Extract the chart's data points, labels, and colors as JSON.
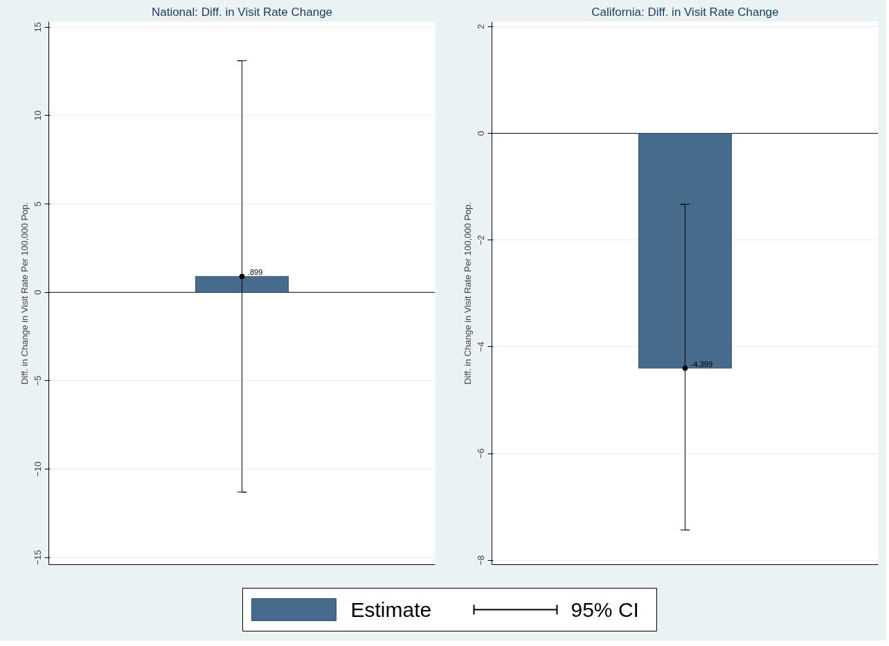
{
  "chart_data": [
    {
      "type": "bar",
      "title": "National: Diff. in Visit Rate Change",
      "ylabel": "Diff. in Change in Visit Rate Per 100,000 Pop.",
      "categories": [
        null
      ],
      "series": [
        {
          "name": "Estimate",
          "color": "#476b8d",
          "values": [
            0.899
          ],
          "errors": [
            [
              -11.3,
              13.1
            ]
          ],
          "value_labels": [
            ".899"
          ]
        },
        {
          "type": "scatter",
          "color": "#000000",
          "values": [
            0.899
          ]
        }
      ],
      "ylim": [
        -15.4,
        15.3
      ],
      "yticks": [
        -15,
        -10,
        -5,
        0,
        5,
        10,
        15
      ],
      "ref_lines": [
        {
          "axis": "y",
          "value": 0
        }
      ],
      "grid": "y",
      "tick_labels": "y",
      "marker": "circle",
      "legend": "bottom",
      "annotations": [
        "95% CI"
      ]
    },
    {
      "type": "bar",
      "title": "California: Diff. in Visit Rate Change",
      "ylabel": "Diff. in Change in Visit Rate Per 100,000 Pop.",
      "categories": [
        null
      ],
      "series": [
        {
          "color": "#476b8d",
          "values": [
            -4.399
          ],
          "errors": [
            [
              -7.43,
              -1.33
            ]
          ],
          "value_labels": [
            "-4.399"
          ]
        },
        {
          "type": "scatter",
          "color": "#000000",
          "values": [
            -4.399
          ]
        }
      ],
      "ylim": [
        -8.08,
        2.09
      ],
      "yticks": [
        -8,
        -6,
        -4,
        -2,
        0,
        2
      ],
      "ref_lines": [
        {
          "axis": "y",
          "value": 0
        }
      ],
      "grid": "y",
      "tick_labels": "y",
      "marker": "circle"
    }
  ]
}
